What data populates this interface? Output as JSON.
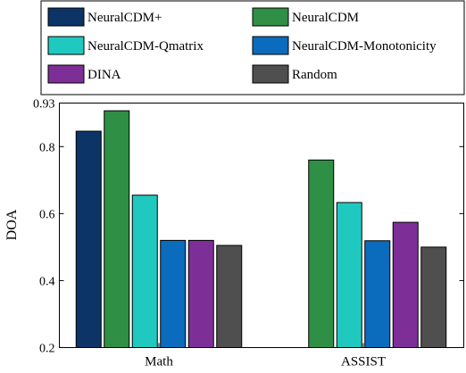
{
  "chart_data": {
    "type": "bar",
    "title": "",
    "xlabel": "",
    "ylabel": "DOA",
    "categories": [
      "Math",
      "ASSIST"
    ],
    "ylim": [
      0.2,
      0.93
    ],
    "yticks": [
      0.2,
      0.4,
      0.6,
      0.8,
      0.93
    ],
    "ytick_labels": [
      "0.2",
      "0.4",
      "0.6",
      "0.8",
      "0.93"
    ],
    "grid": false,
    "legend_position": "top",
    "series": [
      {
        "name": "NeuralCDM+",
        "color": "#0c3466",
        "values": [
          0.846,
          0.2
        ]
      },
      {
        "name": "NeuralCDM",
        "color": "#2f8f45",
        "values": [
          0.907,
          0.76
        ]
      },
      {
        "name": "NeuralCDM-Qmatrix",
        "color": "#20c9c0",
        "values": [
          0.655,
          0.633
        ]
      },
      {
        "name": "NeuralCDM-Monotonicity",
        "color": "#0b6bbd",
        "values": [
          0.52,
          0.519
        ]
      },
      {
        "name": "DINA",
        "color": "#7d2f97",
        "values": [
          0.52,
          0.574
        ]
      },
      {
        "name": "Random",
        "color": "#4f4f4f",
        "values": [
          0.505,
          0.5
        ]
      }
    ]
  }
}
